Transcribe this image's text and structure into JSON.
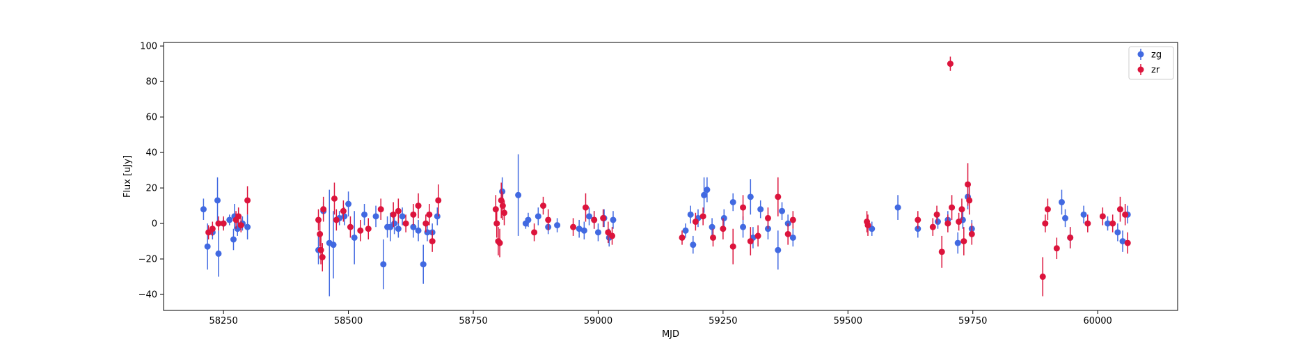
{
  "chart_data": {
    "type": "scatter",
    "title": "",
    "xlabel": "MJD",
    "ylabel": "Flux [uJy]",
    "xlim": [
      58130,
      60160
    ],
    "ylim": [
      -49,
      102
    ],
    "xticks": [
      58250,
      58500,
      58750,
      59000,
      59250,
      59500,
      59750,
      60000
    ],
    "yticks": [
      -40,
      -20,
      0,
      20,
      40,
      60,
      80,
      100
    ],
    "grid": false,
    "legend_position": "top-right",
    "series": [
      {
        "name": "zg",
        "color": "#4169e1",
        "points": [
          [
            58210,
            8,
            6
          ],
          [
            58218,
            -13,
            13
          ],
          [
            58228,
            -5,
            4
          ],
          [
            58238,
            13,
            13
          ],
          [
            58240,
            -17,
            13
          ],
          [
            58250,
            0,
            3
          ],
          [
            58262,
            2,
            3
          ],
          [
            58270,
            -9,
            6
          ],
          [
            58272,
            4,
            7
          ],
          [
            58278,
            -3,
            4
          ],
          [
            58288,
            0,
            4
          ],
          [
            58298,
            -2,
            7
          ],
          [
            58440,
            -15,
            8
          ],
          [
            58450,
            7,
            5
          ],
          [
            58462,
            -11,
            30
          ],
          [
            58470,
            -12,
            19
          ],
          [
            58482,
            3,
            4
          ],
          [
            58492,
            4,
            5
          ],
          [
            58500,
            11,
            7
          ],
          [
            58512,
            -8,
            15
          ],
          [
            58532,
            5,
            6
          ],
          [
            58555,
            4,
            6
          ],
          [
            58570,
            -23,
            14
          ],
          [
            58578,
            -2,
            6
          ],
          [
            58584,
            -2,
            8
          ],
          [
            58592,
            0,
            6
          ],
          [
            58600,
            -3,
            5
          ],
          [
            58608,
            4,
            5
          ],
          [
            58630,
            -2,
            6
          ],
          [
            58640,
            -4,
            6
          ],
          [
            58650,
            -23,
            11
          ],
          [
            58658,
            -5,
            5
          ],
          [
            58668,
            -5,
            5
          ],
          [
            58678,
            4,
            5
          ],
          [
            58808,
            18,
            8
          ],
          [
            58840,
            16,
            23
          ],
          [
            58855,
            0,
            3
          ],
          [
            58860,
            2,
            4
          ],
          [
            58880,
            4,
            5
          ],
          [
            58900,
            -2,
            4
          ],
          [
            58918,
            -1,
            4
          ],
          [
            58962,
            -3,
            5
          ],
          [
            58972,
            -4,
            5
          ],
          [
            58982,
            4,
            5
          ],
          [
            58992,
            2,
            5
          ],
          [
            59000,
            -5,
            5
          ],
          [
            59012,
            3,
            5
          ],
          [
            59022,
            -8,
            5
          ],
          [
            59030,
            2,
            5
          ],
          [
            59175,
            -4,
            4
          ],
          [
            59185,
            5,
            5
          ],
          [
            59190,
            -12,
            5
          ],
          [
            59200,
            3,
            5
          ],
          [
            59212,
            16,
            10
          ],
          [
            59218,
            19,
            7
          ],
          [
            59228,
            -2,
            5
          ],
          [
            59252,
            3,
            5
          ],
          [
            59270,
            12,
            5
          ],
          [
            59290,
            -2,
            6
          ],
          [
            59305,
            15,
            10
          ],
          [
            59310,
            -8,
            6
          ],
          [
            59325,
            8,
            5
          ],
          [
            59340,
            -3,
            6
          ],
          [
            59360,
            -15,
            11
          ],
          [
            59368,
            7,
            5
          ],
          [
            59380,
            0,
            5
          ],
          [
            59390,
            -8,
            5
          ],
          [
            59548,
            -3,
            4
          ],
          [
            59600,
            9,
            7
          ],
          [
            59640,
            -3,
            5
          ],
          [
            59680,
            1,
            4
          ],
          [
            59700,
            2,
            5
          ],
          [
            59720,
            -11,
            6
          ],
          [
            59730,
            2,
            5
          ],
          [
            59740,
            15,
            7
          ],
          [
            59748,
            -3,
            5
          ],
          [
            59928,
            12,
            7
          ],
          [
            59935,
            3,
            5
          ],
          [
            59945,
            -8,
            6
          ],
          [
            59972,
            5,
            5
          ],
          [
            60020,
            0,
            4
          ],
          [
            60040,
            -5,
            5
          ],
          [
            60050,
            -10,
            6
          ],
          [
            60060,
            5,
            5
          ]
        ]
      },
      {
        "name": "zr",
        "color": "#dc143c",
        "points": [
          [
            58220,
            -5,
            4
          ],
          [
            58228,
            -3,
            4
          ],
          [
            58240,
            0,
            4
          ],
          [
            58250,
            0,
            4
          ],
          [
            58275,
            2,
            5
          ],
          [
            58280,
            4,
            5
          ],
          [
            58285,
            -1,
            4
          ],
          [
            58298,
            13,
            8
          ],
          [
            58440,
            2,
            6
          ],
          [
            58443,
            -6,
            7
          ],
          [
            58445,
            -15,
            8
          ],
          [
            58448,
            -19,
            8
          ],
          [
            58450,
            8,
            7
          ],
          [
            58472,
            14,
            9
          ],
          [
            58476,
            2,
            6
          ],
          [
            58490,
            7,
            6
          ],
          [
            58504,
            -2,
            6
          ],
          [
            58524,
            -4,
            6
          ],
          [
            58540,
            -3,
            6
          ],
          [
            58565,
            8,
            6
          ],
          [
            58590,
            5,
            7
          ],
          [
            58600,
            7,
            7
          ],
          [
            58615,
            0,
            5
          ],
          [
            58630,
            5,
            6
          ],
          [
            58640,
            10,
            7
          ],
          [
            58655,
            0,
            5
          ],
          [
            58662,
            5,
            6
          ],
          [
            58668,
            -10,
            6
          ],
          [
            58680,
            13,
            9
          ],
          [
            58795,
            8,
            8
          ],
          [
            58797,
            0,
            8
          ],
          [
            58800,
            -10,
            8
          ],
          [
            58803,
            -11,
            8
          ],
          [
            58806,
            13,
            10
          ],
          [
            58809,
            10,
            8
          ],
          [
            58812,
            6,
            7
          ],
          [
            58872,
            -5,
            5
          ],
          [
            58890,
            10,
            5
          ],
          [
            58900,
            2,
            6
          ],
          [
            58950,
            -2,
            5
          ],
          [
            58975,
            9,
            8
          ],
          [
            58992,
            2,
            5
          ],
          [
            59010,
            3,
            5
          ],
          [
            59020,
            -5,
            6
          ],
          [
            59028,
            -7,
            5
          ],
          [
            59168,
            -8,
            4
          ],
          [
            59195,
            1,
            5
          ],
          [
            59210,
            4,
            5
          ],
          [
            59230,
            -8,
            5
          ],
          [
            59250,
            -3,
            6
          ],
          [
            59270,
            -13,
            10
          ],
          [
            59290,
            9,
            7
          ],
          [
            59305,
            -10,
            8
          ],
          [
            59320,
            -7,
            6
          ],
          [
            59340,
            3,
            6
          ],
          [
            59360,
            15,
            11
          ],
          [
            59380,
            -6,
            6
          ],
          [
            59390,
            2,
            5
          ],
          [
            59538,
            1,
            6
          ],
          [
            59540,
            -1,
            6
          ],
          [
            59640,
            2,
            5
          ],
          [
            59670,
            -2,
            5
          ],
          [
            59678,
            5,
            5
          ],
          [
            59688,
            -16,
            9
          ],
          [
            59700,
            0,
            5
          ],
          [
            59705,
            90,
            4
          ],
          [
            59708,
            9,
            7
          ],
          [
            59722,
            1,
            5
          ],
          [
            59728,
            8,
            6
          ],
          [
            59732,
            -10,
            8
          ],
          [
            59740,
            22,
            12
          ],
          [
            59743,
            13,
            8
          ],
          [
            59748,
            -6,
            6
          ],
          [
            59890,
            -30,
            11
          ],
          [
            59895,
            0,
            5
          ],
          [
            59900,
            8,
            6
          ],
          [
            59918,
            -14,
            6
          ],
          [
            59945,
            -8,
            6
          ],
          [
            59980,
            0,
            5
          ],
          [
            60010,
            4,
            5
          ],
          [
            60030,
            0,
            5
          ],
          [
            60045,
            8,
            7
          ],
          [
            60055,
            5,
            6
          ],
          [
            60060,
            -11,
            6
          ]
        ]
      }
    ]
  }
}
